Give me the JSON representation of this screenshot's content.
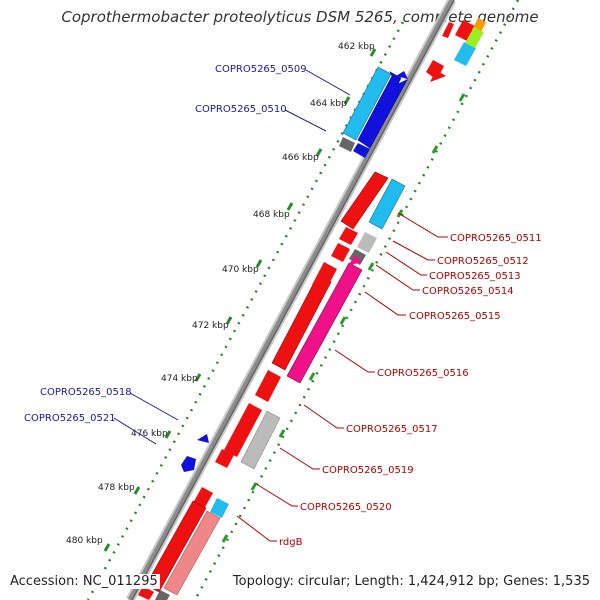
{
  "title": "Coprothermobacter proteolyticus DSM 5265, complete genome",
  "footer": {
    "accession": "Accession: NC_011295",
    "topology": "Topology: circular; Length: 1,424,912 bp; Genes: 1,535"
  },
  "ticks": [
    "462 kbp",
    "464 kbp",
    "466 kbp",
    "468 kbp",
    "470 kbp",
    "472 kbp",
    "474 kbp",
    "476 kbp",
    "478 kbp",
    "480 kbp"
  ],
  "genes_left": [
    "COPRO5265_0509",
    "COPRO5265_0510",
    "COPRO5265_0518",
    "COPRO5265_0521"
  ],
  "genes_right": [
    "COPRO5265_0511",
    "COPRO5265_0512",
    "COPRO5265_0513",
    "COPRO5265_0514",
    "COPRO5265_0515",
    "COPRO5265_0516",
    "COPRO5265_0517",
    "COPRO5265_0519",
    "COPRO5265_0520",
    "rdgB"
  ],
  "colors": {
    "backbone": "#8c8c8c",
    "gene_red": "#ee1111",
    "gene_cyan": "#22bbee",
    "gene_blue": "#1111dd",
    "gene_magenta": "#ee1188",
    "gene_gray": "#bbbbbb",
    "gene_darkgray": "#666666",
    "gene_pink": "#ee8888",
    "dot_green": "#2a8a2a",
    "dash_green": "#2a9a2a"
  }
}
